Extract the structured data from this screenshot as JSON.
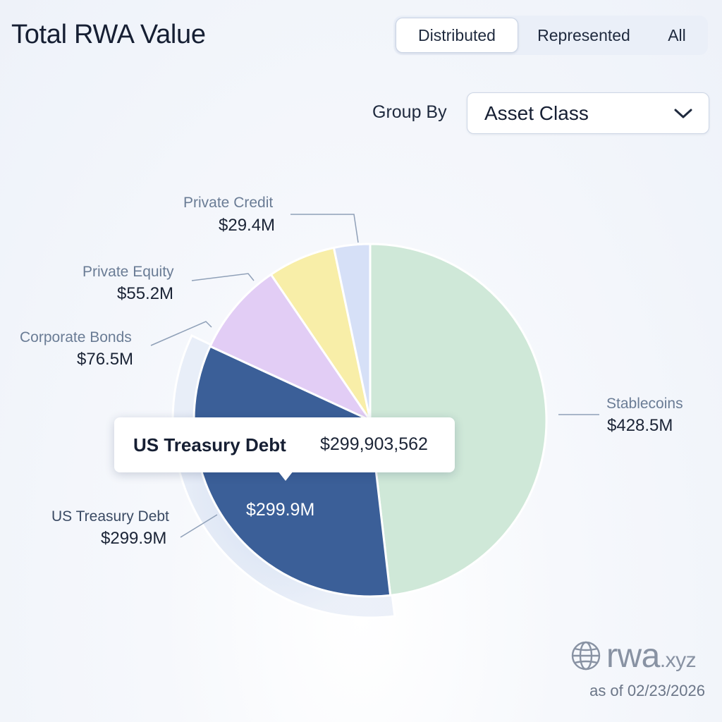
{
  "header": {
    "title": "Total RWA Value",
    "tabs": [
      {
        "label": "Distributed",
        "active": true
      },
      {
        "label": "Represented",
        "active": false
      },
      {
        "label": "All",
        "active": false
      }
    ]
  },
  "controls": {
    "group_by_label": "Group By",
    "group_by_value": "Asset Class",
    "dropdown_icon": "chevron-down-icon"
  },
  "chart_data": {
    "type": "pie",
    "title": "Total RWA Value",
    "unit": "USD",
    "slices": [
      {
        "name": "Stablecoins",
        "value": 428.5,
        "label": "$428.5M",
        "color": "#cfe8d8"
      },
      {
        "name": "US Treasury Debt",
        "value": 299.9,
        "label": "$299.9M",
        "color": "#3b5f98"
      },
      {
        "name": "Corporate Bonds",
        "value": 76.5,
        "label": "$76.5M",
        "color": "#e2cdf5"
      },
      {
        "name": "Private Equity",
        "value": 55.2,
        "label": "$55.2M",
        "color": "#f8eea8"
      },
      {
        "name": "Private Credit",
        "value": 29.4,
        "label": "$29.4M",
        "color": "#d6e0f7"
      }
    ],
    "highlighted": "US Treasury Debt",
    "inner_label": "$299.9M"
  },
  "tooltip": {
    "name": "US Treasury Debt",
    "value": "$299,903,562"
  },
  "footer": {
    "brand_main": "rwa",
    "brand_suffix": ".xyz",
    "brand_icon": "globe-icon",
    "as_of": "as of 02/23/2026"
  }
}
